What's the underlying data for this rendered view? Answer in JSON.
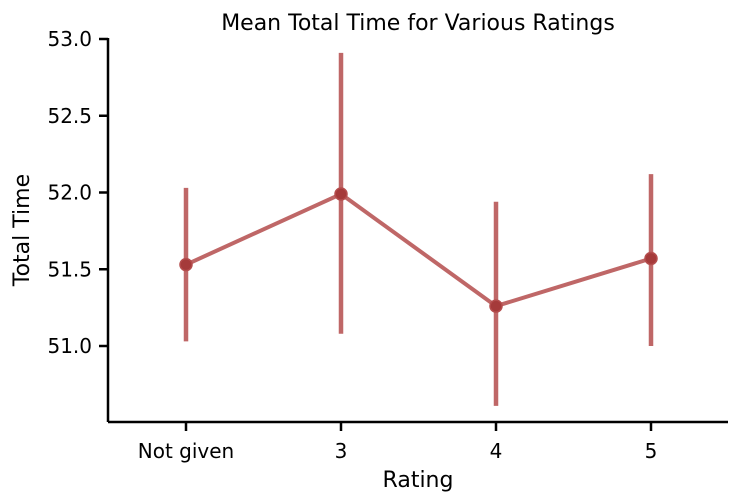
{
  "chart_data": {
    "type": "line",
    "title": "Mean Total Time for Various Ratings",
    "xlabel": "Rating",
    "ylabel": "Total Time",
    "categories": [
      "Not given",
      "3",
      "4",
      "5"
    ],
    "series": [
      {
        "values": [
          51.53,
          51.99,
          51.26,
          51.57
        ],
        "error_low": [
          51.03,
          51.08,
          50.61,
          51.0
        ],
        "error_high": [
          52.03,
          52.91,
          51.94,
          52.12
        ]
      }
    ],
    "yticks": [
      "51.0",
      "51.5",
      "52.0",
      "52.5",
      "53.0"
    ],
    "ylim": [
      50.49,
      53.02
    ],
    "grid": false,
    "color": "#b44c4c",
    "marker_color": "#a53a3a"
  }
}
